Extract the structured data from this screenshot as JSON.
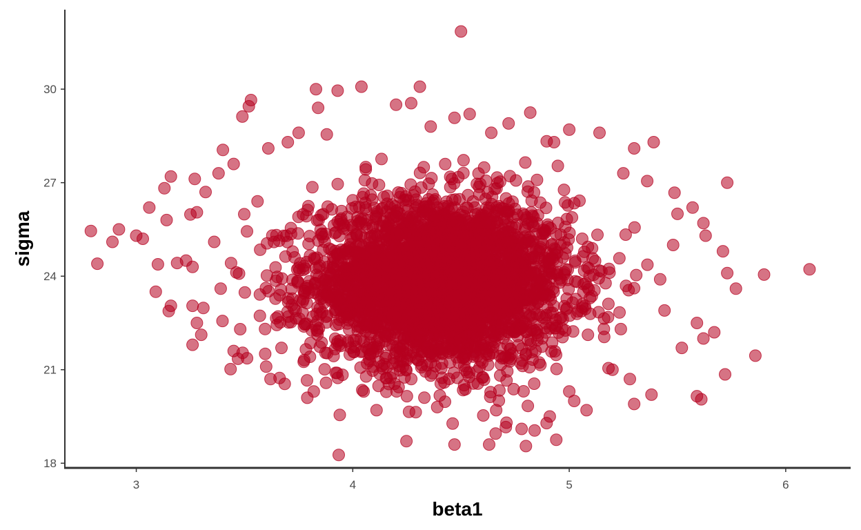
{
  "chart_data": {
    "type": "scatter",
    "title": "",
    "xlabel": "beta1",
    "ylabel": "sigma",
    "xlim": [
      2.67,
      6.3
    ],
    "ylim": [
      17.85,
      32.55
    ],
    "x_ticks": [
      3,
      4,
      5,
      6
    ],
    "y_ticks": [
      18,
      21,
      24,
      27,
      30
    ],
    "grid": false,
    "legend": "none",
    "point_color": "#b5001f",
    "point_opacity": 0.55,
    "series": [
      {
        "points": [
          [
            4.5,
            31.85
          ],
          [
            3.83,
            30.0
          ],
          [
            3.93,
            29.95
          ],
          [
            4.04,
            30.08
          ],
          [
            4.31,
            30.08
          ],
          [
            3.53,
            29.65
          ],
          [
            3.52,
            29.45
          ],
          [
            3.49,
            29.12
          ],
          [
            4.27,
            29.55
          ],
          [
            4.82,
            29.25
          ],
          [
            4.47,
            29.08
          ],
          [
            4.54,
            29.2
          ],
          [
            4.2,
            29.5
          ],
          [
            3.84,
            29.4
          ],
          [
            2.79,
            25.45
          ],
          [
            2.92,
            25.5
          ],
          [
            2.89,
            25.1
          ],
          [
            3.0,
            25.3
          ],
          [
            3.03,
            25.2
          ],
          [
            2.82,
            24.4
          ],
          [
            3.1,
            24.38
          ],
          [
            3.06,
            26.2
          ],
          [
            3.13,
            26.82
          ],
          [
            3.16,
            27.2
          ],
          [
            3.14,
            25.8
          ],
          [
            3.09,
            23.5
          ],
          [
            3.16,
            23.05
          ],
          [
            3.15,
            22.88
          ],
          [
            3.27,
            27.12
          ],
          [
            3.32,
            26.7
          ],
          [
            3.25,
            25.98
          ],
          [
            3.28,
            26.05
          ],
          [
            3.23,
            24.5
          ],
          [
            3.26,
            24.3
          ],
          [
            3.26,
            23.05
          ],
          [
            3.28,
            22.5
          ],
          [
            3.26,
            21.8
          ],
          [
            3.3,
            22.12
          ],
          [
            3.31,
            22.98
          ],
          [
            3.45,
            21.6
          ],
          [
            3.47,
            21.35
          ],
          [
            3.62,
            20.7
          ],
          [
            3.79,
            20.1
          ],
          [
            3.82,
            20.3
          ],
          [
            3.94,
            19.55
          ],
          [
            4.11,
            19.7
          ],
          [
            4.26,
            19.65
          ],
          [
            4.39,
            19.8
          ],
          [
            4.47,
            18.6
          ],
          [
            4.63,
            18.6
          ],
          [
            4.8,
            18.55
          ],
          [
            4.66,
            18.95
          ],
          [
            4.71,
            19.3
          ],
          [
            4.78,
            19.1
          ],
          [
            4.84,
            19.05
          ],
          [
            4.94,
            18.75
          ],
          [
            4.91,
            19.5
          ],
          [
            5.08,
            19.7
          ],
          [
            5.0,
            20.3
          ],
          [
            5.3,
            19.9
          ],
          [
            5.38,
            20.2
          ],
          [
            5.59,
            20.15
          ],
          [
            5.61,
            20.05
          ],
          [
            5.72,
            20.85
          ],
          [
            5.86,
            21.45
          ],
          [
            5.67,
            22.2
          ],
          [
            5.62,
            22.0
          ],
          [
            5.59,
            22.5
          ],
          [
            5.9,
            24.05
          ],
          [
            6.11,
            24.22
          ],
          [
            5.73,
            24.1
          ],
          [
            5.77,
            23.6
          ],
          [
            5.71,
            24.8
          ],
          [
            5.73,
            27.0
          ],
          [
            5.62,
            25.7
          ],
          [
            5.63,
            25.3
          ],
          [
            5.57,
            26.2
          ],
          [
            5.5,
            26.0
          ],
          [
            5.36,
            27.05
          ],
          [
            5.39,
            28.3
          ],
          [
            5.3,
            28.1
          ],
          [
            5.14,
            28.6
          ],
          [
            5.0,
            28.7
          ],
          [
            4.93,
            28.3
          ],
          [
            3.4,
            28.05
          ],
          [
            3.7,
            28.3
          ],
          [
            3.75,
            28.6
          ],
          [
            3.61,
            28.1
          ],
          [
            3.38,
            27.3
          ],
          [
            3.45,
            27.6
          ],
          [
            4.06,
            27.5
          ],
          [
            4.72,
            28.9
          ],
          [
            4.36,
            28.8
          ],
          [
            4.64,
            28.6
          ],
          [
            3.88,
            28.55
          ],
          [
            5.2,
            21.0
          ],
          [
            5.28,
            20.7
          ],
          [
            4.25,
            20.15
          ],
          [
            3.6,
            21.1
          ],
          [
            3.48,
            22.3
          ],
          [
            5.44,
            22.9
          ],
          [
            5.52,
            21.7
          ],
          [
            3.36,
            25.1
          ],
          [
            3.39,
            23.6
          ],
          [
            5.48,
            25.0
          ],
          [
            5.42,
            23.9
          ],
          [
            3.56,
            26.4
          ],
          [
            5.25,
            27.3
          ]
        ],
        "dense_core": {
          "center": [
            4.4,
            23.8
          ],
          "spread": [
            0.3,
            1.32
          ]
        }
      }
    ]
  }
}
